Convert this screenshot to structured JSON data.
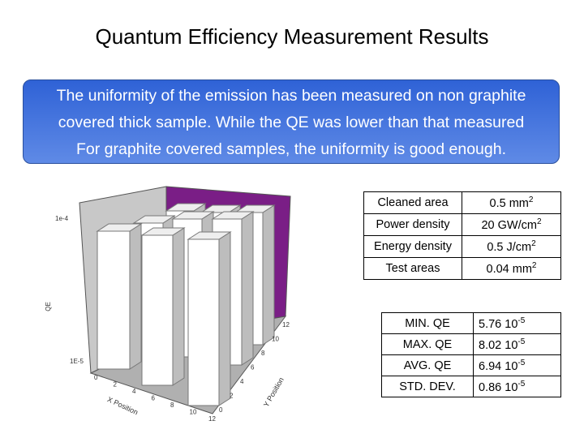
{
  "title": "Quantum Efficiency Measurement Results",
  "note": {
    "lines": [
      "The uniformity of the emission has been measured on non graphite",
      "covered thick sample. While the QE was lower than that measured",
      "For graphite covered samples, the uniformity is good enough."
    ]
  },
  "figure": {
    "qe_axis_label": "QE",
    "x_axis_label": "X Position",
    "y_axis_label": "Y Position",
    "qe_ticks": [
      "1e-4",
      "1E-5"
    ],
    "x_ticks": [
      "0",
      "2",
      "4",
      "6",
      "8",
      "10",
      "12"
    ],
    "y_ticks": [
      "0",
      "2",
      "4",
      "6",
      "8",
      "10",
      "12"
    ]
  },
  "conditions_table": {
    "rows": [
      [
        {
          "base": "Cleaned area"
        },
        {
          "base": "0.5 mm",
          "sup": "2"
        }
      ],
      [
        {
          "base": "Power density"
        },
        {
          "base": "20 GW/cm",
          "sup": "2"
        }
      ],
      [
        {
          "base": "Energy density"
        },
        {
          "base": "0.5 J/cm",
          "sup": "2"
        }
      ],
      [
        {
          "base": "Test areas"
        },
        {
          "base": "0.04 mm",
          "sup": "2"
        }
      ]
    ]
  },
  "results_table": {
    "rows": [
      [
        {
          "base": "MIN. QE"
        },
        {
          "base": "5.76 10",
          "sup": "-5"
        }
      ],
      [
        {
          "base": "MAX. QE"
        },
        {
          "base": "8.02 10",
          "sup": "-5"
        }
      ],
      [
        {
          "base": "AVG. QE"
        },
        {
          "base": "6.94 10",
          "sup": "-5"
        }
      ],
      [
        {
          "base": "STD. DEV."
        },
        {
          "base": "0.86 10",
          "sup": "-5"
        }
      ]
    ]
  }
}
